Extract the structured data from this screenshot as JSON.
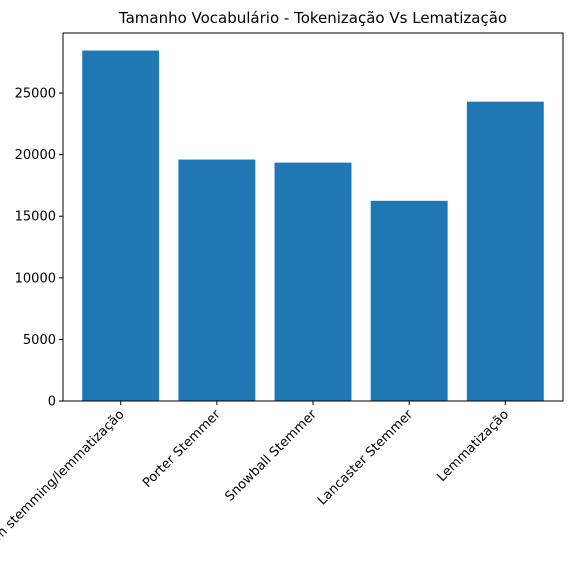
{
  "chart_data": {
    "type": "bar",
    "title": "Tamanho Vocabulário - Tokenização Vs Lematização",
    "xlabel": "",
    "ylabel": "",
    "categories": [
      "Sem stemming/lemmatização",
      "Porter Stemmer",
      "Snowball Stemmer",
      "Lancaster Stemmer",
      "Lemmatização"
    ],
    "values": [
      28450,
      19600,
      19350,
      16250,
      24300
    ],
    "ylim": [
      0,
      29873
    ],
    "yticks": [
      0,
      5000,
      10000,
      15000,
      20000,
      25000
    ],
    "bar_color": "#1f77b4",
    "grid": false,
    "legend": "none"
  }
}
